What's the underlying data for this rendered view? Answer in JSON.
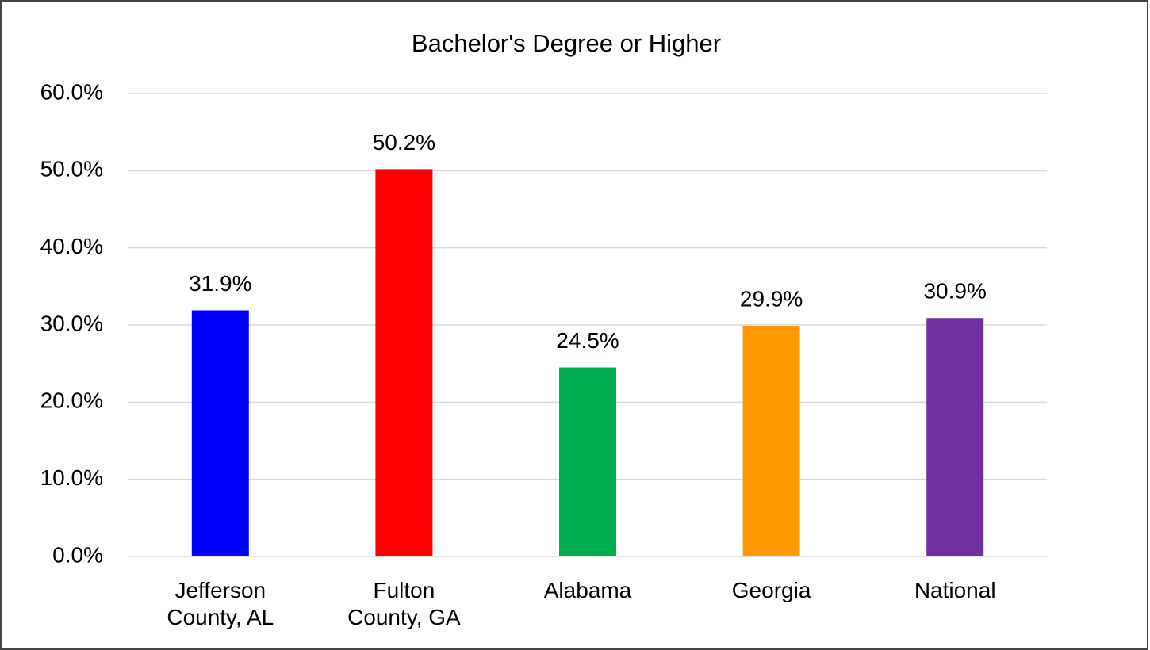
{
  "chart_data": {
    "type": "bar",
    "title": "Bachelor's Degree or Higher",
    "categories": [
      "Jefferson County, AL",
      "Fulton County, GA",
      "Alabama",
      "Georgia",
      "National"
    ],
    "values": [
      31.9,
      50.2,
      24.5,
      29.9,
      30.9
    ],
    "value_labels": [
      "31.9%",
      "50.2%",
      "24.5%",
      "29.9%",
      "30.9%"
    ],
    "colors": [
      "#0000ff",
      "#ff0000",
      "#00b050",
      "#ff9900",
      "#7030a0"
    ],
    "ylim": [
      0,
      60
    ],
    "yticks": [
      {
        "value": 0,
        "label": "0.0%"
      },
      {
        "value": 10,
        "label": "10.0%"
      },
      {
        "value": 20,
        "label": "20.0%"
      },
      {
        "value": 30,
        "label": "30.0%"
      },
      {
        "value": 40,
        "label": "40.0%"
      },
      {
        "value": 50,
        "label": "50.0%"
      },
      {
        "value": 60,
        "label": "60.0%"
      }
    ],
    "grid": true
  }
}
